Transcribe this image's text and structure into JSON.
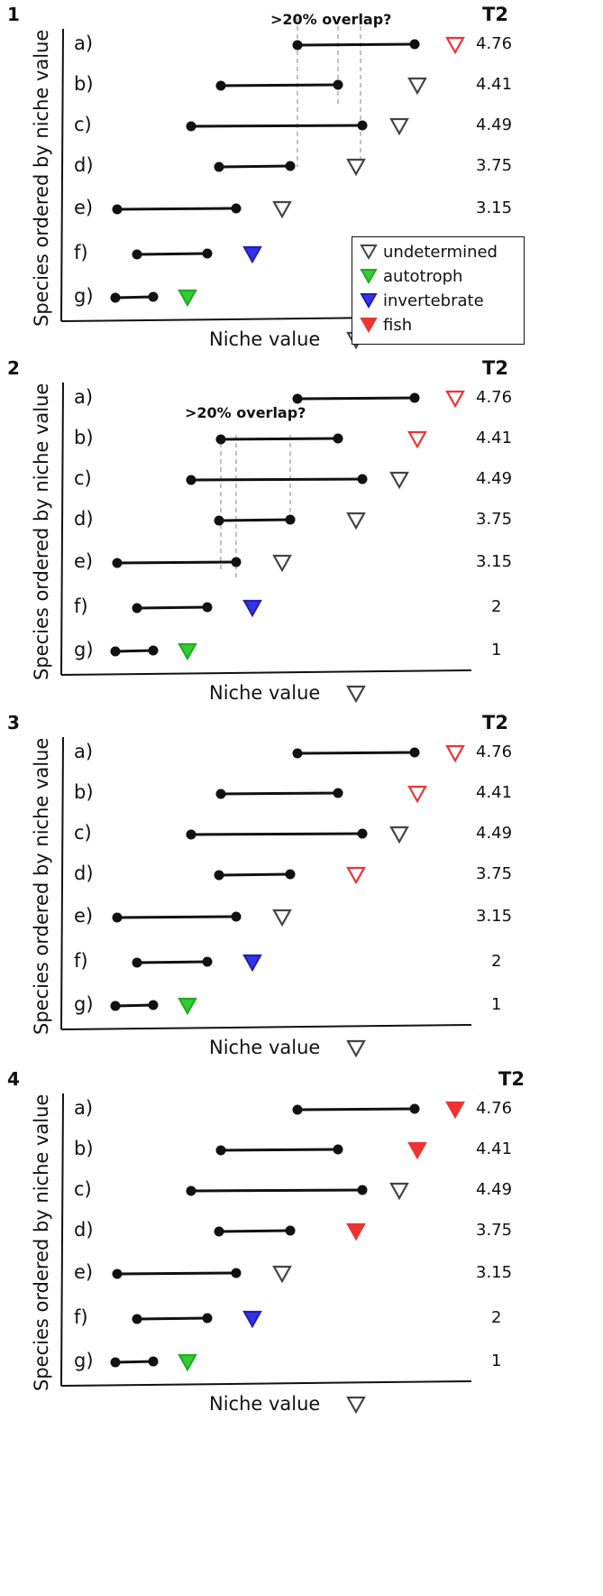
{
  "axis": {
    "ylabel": "Species ordered by niche value",
    "xlabel": "Niche value",
    "t2_header": "T2"
  },
  "species": [
    {
      "label": "a)",
      "t2": "4.76"
    },
    {
      "label": "b)",
      "t2": "4.41"
    },
    {
      "label": "c)",
      "t2": "4.49"
    },
    {
      "label": "d)",
      "t2": "3.75"
    },
    {
      "label": "e)",
      "t2": "3.15"
    },
    {
      "label": "f)",
      "t2": "2"
    },
    {
      "label": "g)",
      "t2": "1"
    }
  ],
  "legend": {
    "undetermined": {
      "label": "undetermined",
      "color": "#444444"
    },
    "autotroph": {
      "label": "autotroph",
      "color": "#33cc33"
    },
    "invertebrate": {
      "label": "invertebrate",
      "color": "#3333ee"
    },
    "fish": {
      "label": "fish",
      "color": "#ee3333"
    }
  },
  "overlap_label": ">20% overlap?",
  "panels": [
    {
      "number": "1",
      "overlap": true,
      "overlap_pair": [
        "a",
        "b"
      ],
      "markers": [
        "fish-outline",
        "undetermined",
        "undetermined",
        "undetermined",
        "undetermined",
        "invertebrate",
        "autotroph"
      ]
    },
    {
      "number": "2",
      "overlap": true,
      "overlap_pair": [
        "d",
        "e"
      ],
      "markers": [
        "fish-outline",
        "fish-outline",
        "undetermined",
        "undetermined",
        "undetermined",
        "invertebrate",
        "autotroph"
      ]
    },
    {
      "number": "3",
      "overlap": false,
      "markers": [
        "fish-outline",
        "fish-outline",
        "undetermined",
        "fish-outline",
        "undetermined",
        "invertebrate",
        "autotroph"
      ]
    },
    {
      "number": "4",
      "overlap": false,
      "markers": [
        "fish-filled",
        "fish-filled",
        "undetermined",
        "fish-filled",
        "undetermined",
        "invertebrate",
        "autotroph"
      ]
    }
  ]
}
